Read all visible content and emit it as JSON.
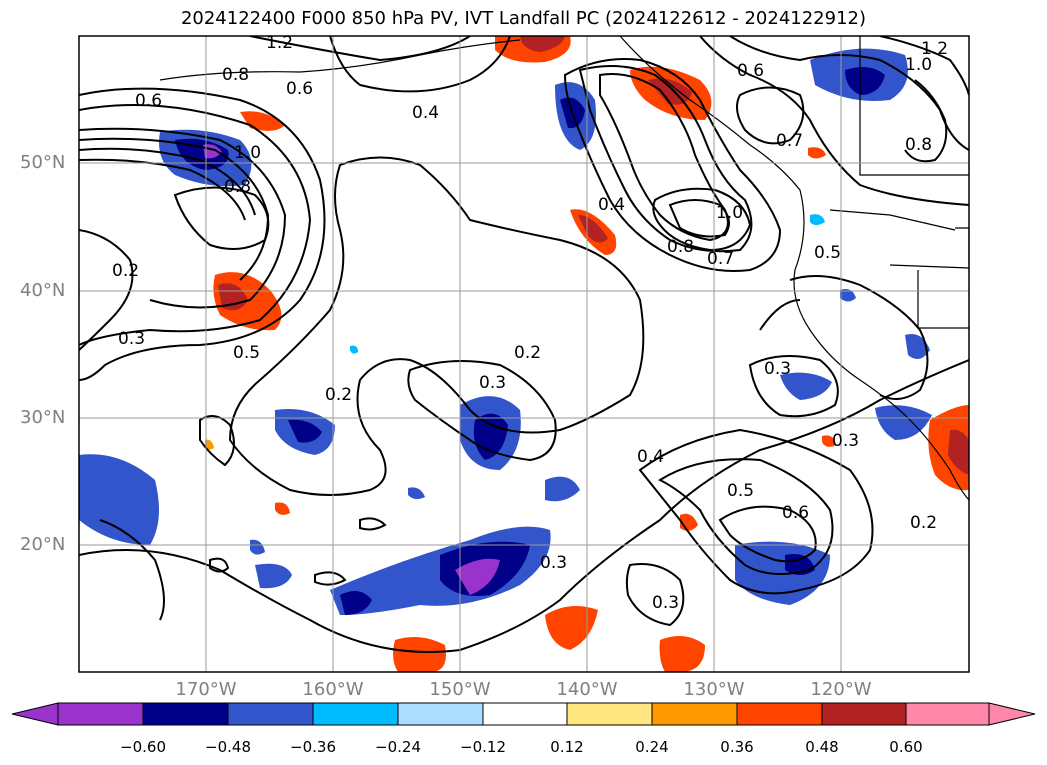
{
  "title": "2024122400 F000 850 hPa PV, IVT Landfall PC (2024122612 - 2024122912)",
  "map": {
    "lon_range": [
      -180,
      -110
    ],
    "lat_range": [
      10,
      60
    ],
    "lat_ticks": [
      "50°N",
      "40°N",
      "30°N",
      "20°N"
    ],
    "lon_ticks": [
      "170°W",
      "160°W",
      "150°W",
      "140°W",
      "130°W",
      "120°W"
    ],
    "grid": true
  },
  "contour_labels": [
    "0.8",
    "0.6",
    "0.6",
    "0.4",
    "1.0",
    "0.8",
    "0.2",
    "0.3",
    "0.5",
    "0.2",
    "0.2",
    "0.3",
    "0.4",
    "1.0",
    "0.8",
    "0.7",
    "0.5",
    "0.6",
    "0.7",
    "0.8",
    "1.2",
    "1.0",
    "0.3",
    "0.4",
    "0.5",
    "0.6",
    "0.3",
    "0.3",
    "0.2",
    "0.3",
    "1.2"
  ],
  "colorbar": {
    "ticks": [
      "−0.60",
      "−0.48",
      "−0.36",
      "−0.24",
      "−0.12",
      "0.12",
      "0.24",
      "0.36",
      "0.48",
      "0.60"
    ],
    "colors": [
      "#9933cc",
      "#000088",
      "#3355cc",
      "#00bbff",
      "#aaddff",
      "#ffffff",
      "#ffe680",
      "#ff9900",
      "#ff4400",
      "#b22222",
      "#ff88aa"
    ]
  }
}
